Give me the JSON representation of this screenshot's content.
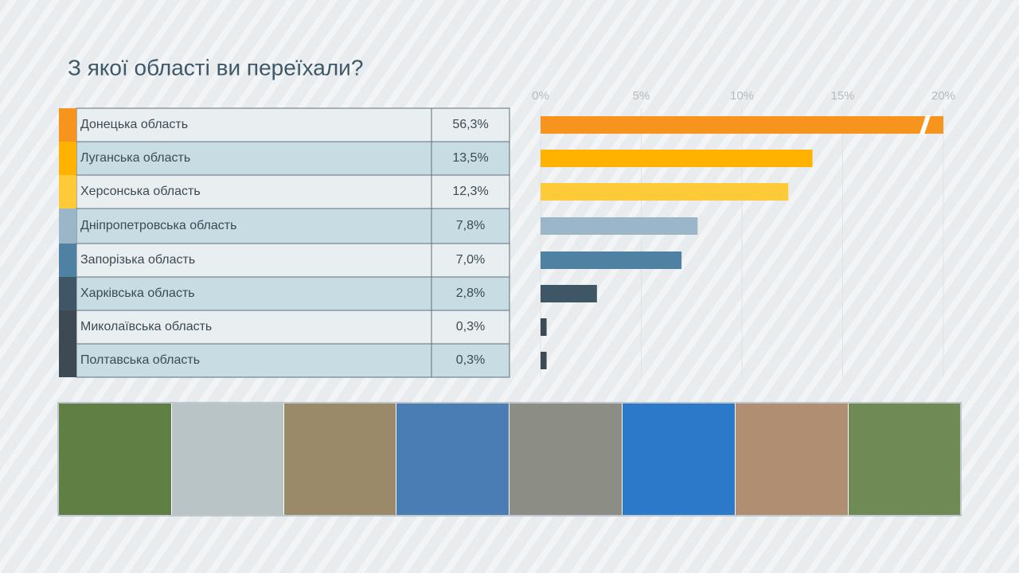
{
  "chart_data": {
    "type": "bar",
    "orientation": "horizontal",
    "title": "З якої області ви переїхали?",
    "categories": [
      "Донецька область",
      "Луганська область",
      "Херсонська область",
      "Дніпропетровська область",
      "Запорізька область",
      "Харківська область",
      "Миколаївська  область",
      "Полтавська область"
    ],
    "values": [
      56.3,
      13.5,
      12.3,
      7.8,
      7.0,
      2.8,
      0.3,
      0.3
    ],
    "value_labels": [
      "56,3%",
      "13,5%",
      "12,3%",
      "7,8%",
      "7,0%",
      "2,8%",
      "0,3%",
      "0,3%"
    ],
    "colors": [
      "#f7941d",
      "#ffb300",
      "#ffca38",
      "#9bb6c9",
      "#4f81a3",
      "#3e5666",
      "#3e4a53",
      "#3e4a53"
    ],
    "xlim": [
      0,
      20
    ],
    "xticks": [
      {
        "value": 0,
        "label": "0%"
      },
      {
        "value": 5,
        "label": "5%"
      },
      {
        "value": 10,
        "label": "10%"
      },
      {
        "value": 15,
        "label": "15%"
      },
      {
        "value": 20,
        "label": "20%"
      }
    ],
    "grid": true
  }
}
